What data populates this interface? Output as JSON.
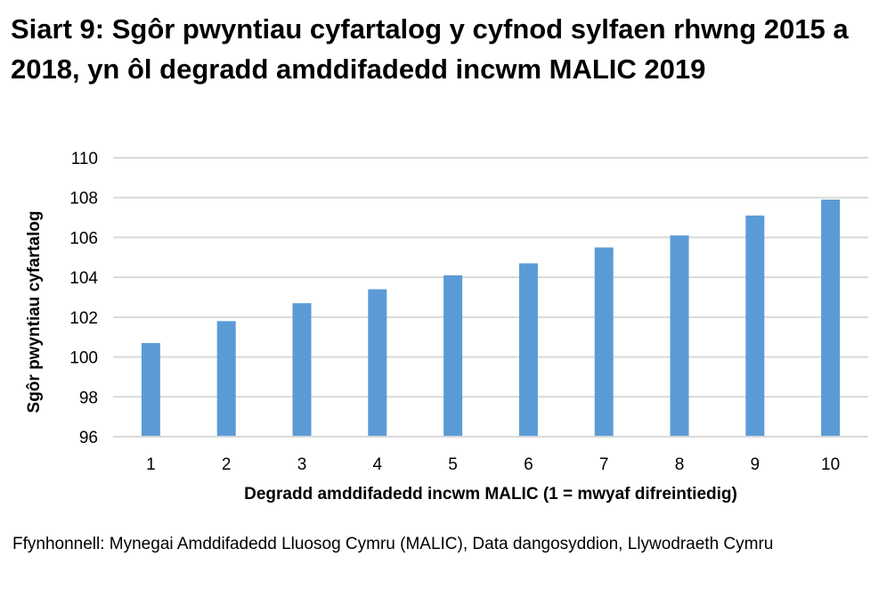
{
  "chart_data": {
    "type": "bar",
    "title": "Siart 9: Sgôr pwyntiau cyfartalog y cyfnod sylfaen rhwng 2015 a 2018, yn ôl degradd amddifadedd incwm MALIC 2019",
    "xlabel": "Degradd amddifadedd incwm MALIC (1 = mwyaf difreintiedig)",
    "ylabel": "Sgôr pwyntiau cyfartalog",
    "categories": [
      "1",
      "2",
      "3",
      "4",
      "5",
      "6",
      "7",
      "8",
      "9",
      "10"
    ],
    "values": [
      100.7,
      101.8,
      102.7,
      103.4,
      104.1,
      104.7,
      105.5,
      106.1,
      107.1,
      107.9
    ],
    "ylim": [
      96,
      110
    ],
    "yticks": [
      "96",
      "98",
      "100",
      "102",
      "104",
      "106",
      "108",
      "110"
    ],
    "grid": true,
    "legend": "none",
    "bar_color": "#5B9BD5",
    "grid_color": "#D9D9D9"
  },
  "source": "Ffynhonnell: Mynegai Amddifadedd Lluosog Cymru (MALIC), Data dangosyddion, Llywodraeth Cymru"
}
